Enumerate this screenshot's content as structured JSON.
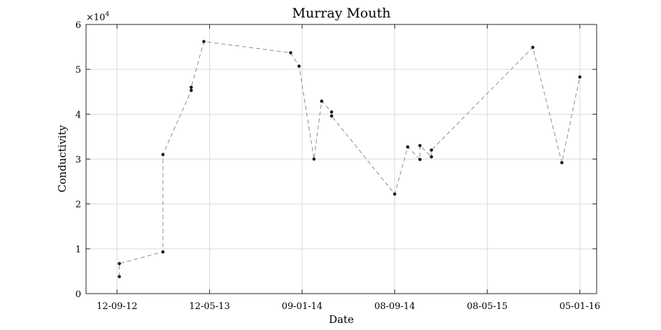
{
  "chart_data": {
    "type": "line",
    "title": "Murray Mouth",
    "xlabel": "Date",
    "ylabel": "Conductivity",
    "y_exponent_label": "×10",
    "y_exponent_power": "4",
    "ylim": [
      0,
      60000
    ],
    "y_ticks": [
      0,
      10000,
      20000,
      30000,
      40000,
      50000,
      60000
    ],
    "y_tick_labels": [
      "0",
      "1",
      "2",
      "3",
      "4",
      "5",
      "6"
    ],
    "xlim": [
      "2012-06-23",
      "2016-02-18"
    ],
    "x_ticks": [
      "2012-09-12",
      "2013-05-12",
      "2014-01-09",
      "2014-09-08",
      "2015-05-08",
      "2016-01-05"
    ],
    "x_tick_labels": [
      "12-09-12",
      "12-05-13",
      "09-01-14",
      "08-09-14",
      "08-05-15",
      "05-01-16"
    ],
    "grid": true,
    "series": [
      {
        "x": [
          "2012-09-18",
          "2012-09-18",
          "2013-01-10",
          "2013-01-10",
          "2013-03-25",
          "2013-03-25",
          "2013-04-27",
          "2013-12-10",
          "2014-01-01",
          "2014-02-09",
          "2014-03-01",
          "2014-03-27",
          "2014-03-27",
          "2014-09-08",
          "2014-10-12",
          "2014-11-13",
          "2014-11-13",
          "2014-12-13",
          "2014-12-13",
          "2015-09-04",
          "2015-11-19",
          "2016-01-05"
        ],
        "y": [
          3800,
          6700,
          9300,
          31000,
          45300,
          46000,
          56200,
          53700,
          50700,
          30000,
          42900,
          40500,
          39600,
          22200,
          32700,
          29900,
          33000,
          30500,
          32000,
          54900,
          29200,
          48300
        ]
      }
    ]
  }
}
